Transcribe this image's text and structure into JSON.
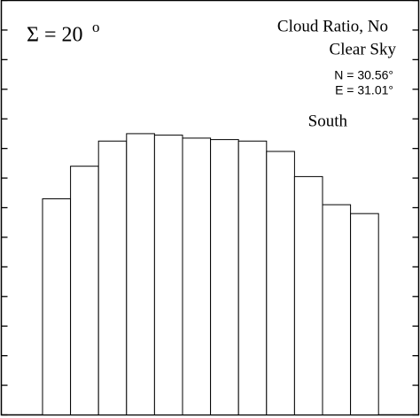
{
  "chart_data": {
    "type": "bar",
    "annotations": [
      "Σ = 20",
      "o",
      "Cloud Ratio, No",
      "Clear Sky",
      "N = 30.56°",
      "E = 31.01°",
      "South"
    ],
    "categories": [
      null,
      null,
      null,
      null,
      null,
      null,
      null,
      null,
      null,
      null,
      null,
      null
    ],
    "values": [
      7.3,
      8.4,
      9.25,
      9.5,
      9.45,
      9.35,
      9.3,
      9.25,
      8.9,
      8.05,
      7.1,
      6.8
    ],
    "color": "#ffffff",
    "ylim": [
      0,
      14
    ],
    "yticks": [
      0,
      1,
      2,
      3,
      4,
      5,
      6,
      7,
      8,
      9,
      10,
      11,
      12,
      13,
      14
    ],
    "grid": false
  }
}
